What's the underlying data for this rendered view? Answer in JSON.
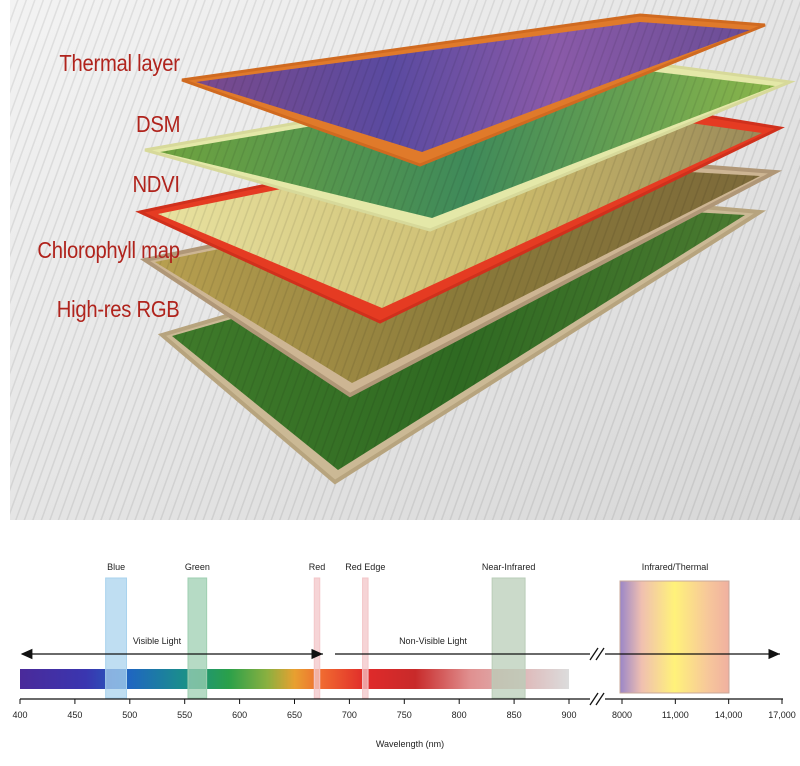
{
  "layers": [
    {
      "label": "Thermal layer"
    },
    {
      "label": "DSM"
    },
    {
      "label": "NDVI"
    },
    {
      "label": "Chlorophyll map"
    },
    {
      "label": "High-res RGB"
    }
  ],
  "spectrum": {
    "bands": [
      {
        "label": "Blue",
        "from": 478,
        "to": 497,
        "color": "#a9d3ee"
      },
      {
        "label": "Green",
        "from": 553,
        "to": 570,
        "color": "#9ecfb1"
      },
      {
        "label": "Red",
        "from": 668,
        "to": 673,
        "color": "#f3c6c8"
      },
      {
        "label": "Red Edge",
        "from": 712,
        "to": 717,
        "color": "#f3c6c8"
      },
      {
        "label": "Near-Infrared",
        "from": 830,
        "to": 860,
        "color": "#b9cdb8"
      }
    ],
    "visible_label": "Visible Light",
    "nonvisible_label": "Non-Visible Light",
    "thermal_label": "Infrared/Thermal",
    "ticks_left": [
      "400",
      "450",
      "500",
      "550",
      "600",
      "650",
      "700",
      "750",
      "800",
      "850",
      "900"
    ],
    "ticks_right": [
      "8000",
      "11,000",
      "14,000",
      "17,000"
    ],
    "axis_label": "Wavelength (nm)"
  },
  "colors": {
    "label_red": "#b0231c"
  }
}
